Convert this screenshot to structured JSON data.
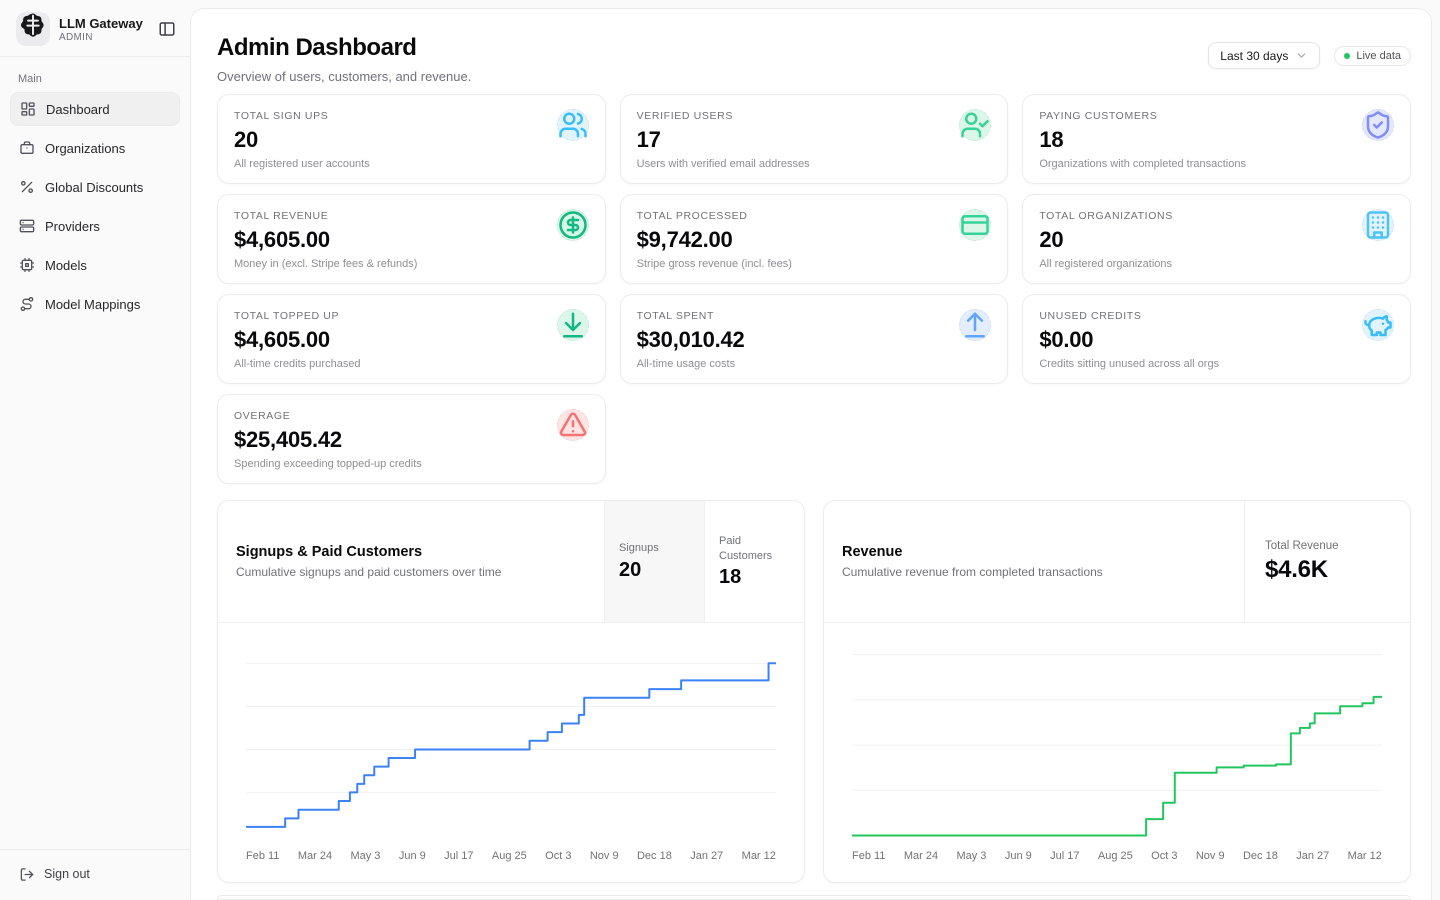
{
  "brand": {
    "name": "LLM Gateway",
    "role": "ADMIN"
  },
  "sidebar": {
    "section_label": "Main",
    "items": [
      {
        "label": "Dashboard",
        "icon": "layout-dashboard-icon",
        "active": true
      },
      {
        "label": "Organizations",
        "icon": "briefcase-icon",
        "active": false
      },
      {
        "label": "Global Discounts",
        "icon": "percent-icon",
        "active": false
      },
      {
        "label": "Providers",
        "icon": "server-icon",
        "active": false
      },
      {
        "label": "Models",
        "icon": "cpu-icon",
        "active": false
      },
      {
        "label": "Model Mappings",
        "icon": "route-icon",
        "active": false
      }
    ],
    "signout_label": "Sign out"
  },
  "header": {
    "title": "Admin Dashboard",
    "subtitle": "Overview of users, customers, and revenue.",
    "range_label": "Last 30 days",
    "live_label": "Live data",
    "live_dot_color": "#22c55e"
  },
  "stats": [
    {
      "label": "TOTAL SIGN UPS",
      "value": "20",
      "desc": "All registered user accounts",
      "icon": "users-icon",
      "fg": "#38bdf8",
      "bg": "#e1f3fd"
    },
    {
      "label": "VERIFIED USERS",
      "value": "17",
      "desc": "Users with verified email addresses",
      "icon": "user-check-icon",
      "fg": "#34d399",
      "bg": "#dcf7ea"
    },
    {
      "label": "PAYING CUSTOMERS",
      "value": "18",
      "desc": "Organizations with completed transactions",
      "icon": "shield-check-icon",
      "fg": "#818cf8",
      "bg": "#e4e8fd"
    },
    {
      "label": "TOTAL REVENUE",
      "value": "$4,605.00",
      "desc": "Money in (excl. Stripe fees & refunds)",
      "icon": "circle-dollar-icon",
      "fg": "#10b981",
      "bg": "#d9f5e8"
    },
    {
      "label": "TOTAL PROCESSED",
      "value": "$9,742.00",
      "desc": "Stripe gross revenue (incl. fees)",
      "icon": "credit-card-icon",
      "fg": "#34d399",
      "bg": "#dcf7ea"
    },
    {
      "label": "TOTAL ORGANIZATIONS",
      "value": "20",
      "desc": "All registered organizations",
      "icon": "building-icon",
      "fg": "#4fc3f7",
      "bg": "#e1f3fd"
    },
    {
      "label": "TOTAL TOPPED UP",
      "value": "$4,605.00",
      "desc": "All-time credits purchased",
      "icon": "download-icon",
      "fg": "#10b981",
      "bg": "#dcf7ea"
    },
    {
      "label": "TOTAL SPENT",
      "value": "$30,010.42",
      "desc": "All-time usage costs",
      "icon": "upload-icon",
      "fg": "#60a5fa",
      "bg": "#e3edfd"
    },
    {
      "label": "UNUSED CREDITS",
      "value": "$0.00",
      "desc": "Credits sitting unused across all orgs",
      "icon": "piggy-bank-icon",
      "fg": "#38bdf8",
      "bg": "#e1f3fd"
    },
    {
      "label": "OVERAGE",
      "value": "$25,405.42",
      "desc": "Spending exceeding topped-up credits",
      "icon": "alert-triangle-icon",
      "fg": "#f87171",
      "bg": "#fde5e5"
    }
  ],
  "charts": {
    "signups": {
      "title": "Signups & Paid Customers",
      "subtitle": "Cumulative signups and paid customers over time",
      "toggles": [
        {
          "label": "Signups",
          "value": "20",
          "active": true
        },
        {
          "label": "Paid Customers",
          "value": "18",
          "active": false
        }
      ]
    },
    "revenue": {
      "title": "Revenue",
      "subtitle": "Cumulative revenue from completed transactions",
      "total_label": "Total Revenue",
      "total_value": "$4.6K"
    }
  },
  "chart_data": [
    {
      "type": "line",
      "title": "Signups & Paid Customers",
      "line_style": "step-after",
      "color": "#3b82f6",
      "grid": true,
      "legend_position": "header",
      "x_ticks": [
        "Feb 11",
        "Mar 24",
        "May 3",
        "Jun 9",
        "Jul 17",
        "Aug 25",
        "Oct 3",
        "Nov 9",
        "Dec 18",
        "Jan 27",
        "Mar 12"
      ],
      "ylim": [
        0,
        21
      ],
      "gridline_values": [
        5,
        10,
        15,
        20
      ],
      "series": [
        {
          "name": "Signups",
          "total": 20,
          "points": [
            [
              0,
              1
            ],
            [
              0.074,
              2
            ],
            [
              0.099,
              3
            ],
            [
              0.175,
              4
            ],
            [
              0.196,
              5
            ],
            [
              0.21,
              6
            ],
            [
              0.223,
              7
            ],
            [
              0.242,
              8
            ],
            [
              0.269,
              9
            ],
            [
              0.319,
              10
            ],
            [
              0.535,
              11
            ],
            [
              0.569,
              12
            ],
            [
              0.596,
              13
            ],
            [
              0.628,
              14
            ],
            [
              0.638,
              16
            ],
            [
              0.761,
              17
            ],
            [
              0.821,
              18
            ],
            [
              0.986,
              20
            ]
          ]
        }
      ]
    },
    {
      "type": "line",
      "title": "Revenue",
      "line_style": "step-after",
      "color": "#22c55e",
      "grid": true,
      "legend_position": "header",
      "x_ticks": [
        "Feb 11",
        "Mar 24",
        "May 3",
        "Jun 9",
        "Jul 17",
        "Aug 25",
        "Oct 3",
        "Nov 9",
        "Dec 18",
        "Jan 27",
        "Mar 12"
      ],
      "ylim": [
        0,
        6000
      ],
      "gridline_values": [
        1500,
        3000,
        4500,
        6000
      ],
      "series": [
        {
          "name": "Revenue",
          "total": 4600,
          "points": [
            [
              0,
              0
            ],
            [
              0.555,
              545
            ],
            [
              0.587,
              1090
            ],
            [
              0.609,
              2080
            ],
            [
              0.688,
              2260
            ],
            [
              0.739,
              2320
            ],
            [
              0.8,
              2360
            ],
            [
              0.828,
              3390
            ],
            [
              0.845,
              3570
            ],
            [
              0.864,
              3720
            ],
            [
              0.873,
              4050
            ],
            [
              0.921,
              4290
            ],
            [
              0.963,
              4390
            ],
            [
              0.984,
              4600
            ]
          ]
        }
      ]
    }
  ]
}
